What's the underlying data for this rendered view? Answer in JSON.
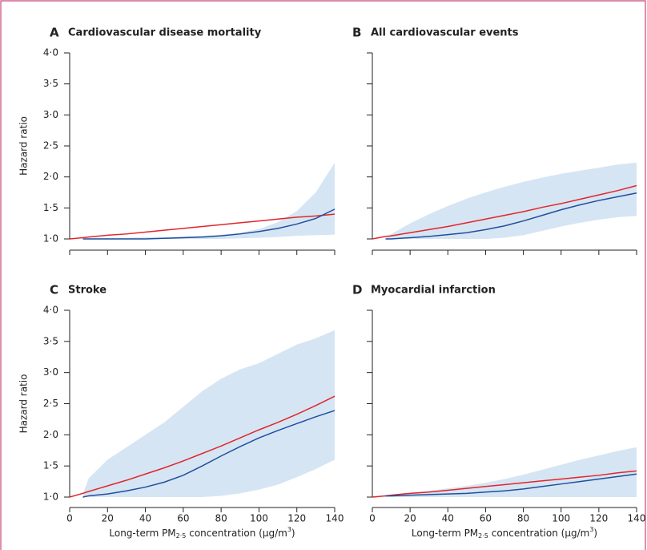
{
  "chart_data": [
    {
      "type": "line",
      "label": "A",
      "title": "Cardiovascular disease mortality",
      "ylabel": "Hazard ratio",
      "x": [
        0,
        7,
        10,
        20,
        30,
        40,
        50,
        60,
        70,
        80,
        90,
        100,
        110,
        120,
        130,
        140
      ],
      "xlim": [
        0,
        140
      ],
      "xticks": [
        0,
        20,
        40,
        60,
        80,
        100,
        120,
        140
      ],
      "ylim": [
        1,
        4
      ],
      "yticks": [
        {
          "value": 1,
          "label": "1·0"
        },
        {
          "value": 1.5,
          "label": "1·5"
        },
        {
          "value": 2,
          "label": "2·0"
        },
        {
          "value": 2.5,
          "label": "2·5"
        },
        {
          "value": 3,
          "label": "3·0"
        },
        {
          "value": 3.5,
          "label": "3·5"
        },
        {
          "value": 4,
          "label": "4·0"
        }
      ],
      "band": {
        "color": "#d6e5f3",
        "lower": [
          null,
          1.0,
          1.0,
          1.0,
          1.0,
          1.0,
          1.0,
          1.0,
          1.0,
          1.0,
          1.01,
          1.02,
          1.03,
          1.05,
          1.06,
          1.07
        ],
        "upper": [
          null,
          1.0,
          1.01,
          1.02,
          1.02,
          1.03,
          1.03,
          1.04,
          1.05,
          1.07,
          1.1,
          1.16,
          1.27,
          1.45,
          1.75,
          2.23
        ]
      },
      "series": [
        {
          "color": "#e0262b",
          "values": [
            1.0,
            1.02,
            1.03,
            1.06,
            1.08,
            1.11,
            1.14,
            1.17,
            1.2,
            1.23,
            1.26,
            1.29,
            1.32,
            1.35,
            1.37,
            1.4
          ]
        },
        {
          "color": "#1f4f9e",
          "values": [
            null,
            1.0,
            1.0,
            1.0,
            1.0,
            1.0,
            1.01,
            1.02,
            1.03,
            1.05,
            1.08,
            1.12,
            1.17,
            1.24,
            1.33,
            1.48
          ]
        }
      ]
    },
    {
      "type": "line",
      "label": "B",
      "title": "All cardiovascular events",
      "x": [
        0,
        7,
        10,
        20,
        30,
        40,
        50,
        60,
        70,
        80,
        90,
        100,
        110,
        120,
        130,
        140
      ],
      "xlim": [
        0,
        140
      ],
      "xticks": [
        0,
        20,
        40,
        60,
        80,
        100,
        120,
        140
      ],
      "ylim": [
        1,
        4
      ],
      "yticks": [
        1,
        1.5,
        2,
        2.5,
        3,
        3.5,
        4
      ],
      "band": {
        "color": "#d6e5f3",
        "lower": [
          null,
          1.0,
          1.0,
          1.0,
          1.0,
          1.0,
          1.0,
          1.0,
          1.02,
          1.06,
          1.13,
          1.2,
          1.26,
          1.31,
          1.35,
          1.37
        ],
        "upper": [
          null,
          1.0,
          1.08,
          1.25,
          1.4,
          1.53,
          1.65,
          1.75,
          1.84,
          1.92,
          1.99,
          2.05,
          2.1,
          2.15,
          2.2,
          2.23
        ]
      },
      "series": [
        {
          "color": "#e0262b",
          "values": [
            1.0,
            1.04,
            1.05,
            1.1,
            1.15,
            1.2,
            1.26,
            1.32,
            1.38,
            1.44,
            1.51,
            1.57,
            1.64,
            1.71,
            1.78,
            1.86
          ]
        },
        {
          "color": "#1f4f9e",
          "values": [
            null,
            1.0,
            1.0,
            1.02,
            1.04,
            1.07,
            1.1,
            1.15,
            1.21,
            1.29,
            1.38,
            1.47,
            1.55,
            1.62,
            1.68,
            1.74
          ]
        }
      ]
    },
    {
      "type": "line",
      "label": "C",
      "title": "Stroke",
      "ylabel": "Hazard ratio",
      "xlabel": [
        "Long-term PM",
        "2·5",
        " concentration (µg/m",
        "3",
        ")"
      ],
      "x": [
        0,
        7,
        10,
        20,
        30,
        40,
        50,
        60,
        70,
        80,
        90,
        100,
        110,
        120,
        130,
        140
      ],
      "xlim": [
        0,
        140
      ],
      "xticks": [
        0,
        20,
        40,
        60,
        80,
        100,
        120,
        140
      ],
      "ylim": [
        1,
        4
      ],
      "yticks": [
        {
          "value": 1,
          "label": "1·0"
        },
        {
          "value": 1.5,
          "label": "1·5"
        },
        {
          "value": 2,
          "label": "2·0"
        },
        {
          "value": 2.5,
          "label": "2·5"
        },
        {
          "value": 3,
          "label": "3·0"
        },
        {
          "value": 3.5,
          "label": "3·5"
        },
        {
          "value": 4,
          "label": "4·0"
        }
      ],
      "band": {
        "color": "#d6e5f3",
        "lower": [
          null,
          1.0,
          1.0,
          1.0,
          1.0,
          1.0,
          1.0,
          1.0,
          1.0,
          1.02,
          1.06,
          1.12,
          1.2,
          1.32,
          1.45,
          1.6
        ],
        "upper": [
          null,
          1.05,
          1.3,
          1.6,
          1.8,
          2.0,
          2.2,
          2.45,
          2.7,
          2.9,
          3.05,
          3.15,
          3.3,
          3.45,
          3.55,
          3.68
        ]
      },
      "series": [
        {
          "color": "#e0262b",
          "values": [
            1.0,
            1.06,
            1.09,
            1.18,
            1.27,
            1.37,
            1.47,
            1.58,
            1.7,
            1.82,
            1.95,
            2.08,
            2.2,
            2.33,
            2.47,
            2.62
          ]
        },
        {
          "color": "#1f4f9e",
          "values": [
            null,
            1.0,
            1.02,
            1.05,
            1.1,
            1.16,
            1.24,
            1.35,
            1.5,
            1.66,
            1.81,
            1.95,
            2.07,
            2.18,
            2.29,
            2.39
          ]
        }
      ]
    },
    {
      "type": "line",
      "label": "D",
      "title": "Myocardial infarction",
      "xlabel": [
        "Long-term PM",
        "2·5",
        " concentration (µg/m",
        "3",
        ")"
      ],
      "x": [
        0,
        7,
        10,
        20,
        30,
        40,
        50,
        60,
        70,
        80,
        90,
        100,
        110,
        120,
        130,
        140
      ],
      "xlim": [
        0,
        140
      ],
      "xticks": [
        0,
        20,
        40,
        60,
        80,
        100,
        120,
        140
      ],
      "ylim": [
        1,
        4
      ],
      "yticks": [
        1,
        1.5,
        2,
        2.5,
        3,
        3.5,
        4
      ],
      "band": {
        "color": "#d6e5f3",
        "lower": [
          null,
          1.0,
          1.0,
          1.0,
          1.0,
          1.0,
          1.0,
          1.0,
          1.0,
          1.0,
          1.0,
          1.0,
          1.0,
          1.0,
          1.0,
          1.0
        ],
        "upper": [
          null,
          1.02,
          1.04,
          1.07,
          1.1,
          1.14,
          1.18,
          1.23,
          1.29,
          1.36,
          1.44,
          1.52,
          1.6,
          1.67,
          1.74,
          1.8
        ]
      },
      "series": [
        {
          "color": "#e0262b",
          "values": [
            1.0,
            1.02,
            1.03,
            1.06,
            1.08,
            1.11,
            1.14,
            1.17,
            1.2,
            1.23,
            1.26,
            1.29,
            1.32,
            1.35,
            1.39,
            1.42
          ]
        },
        {
          "color": "#1f4f9e",
          "values": [
            null,
            1.02,
            1.02,
            1.03,
            1.04,
            1.05,
            1.06,
            1.08,
            1.1,
            1.13,
            1.17,
            1.21,
            1.25,
            1.29,
            1.33,
            1.37
          ]
        }
      ]
    }
  ]
}
